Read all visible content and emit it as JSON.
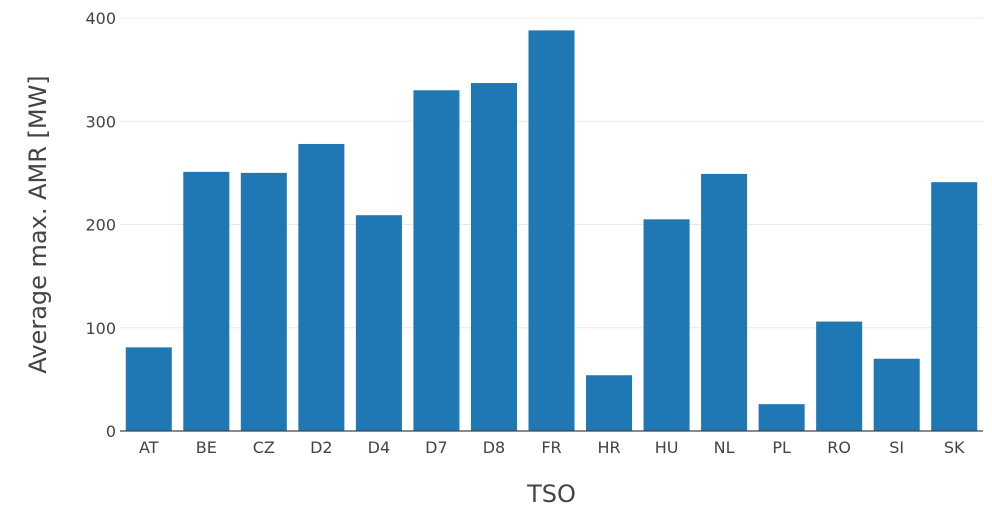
{
  "chart_data": {
    "type": "bar",
    "title": "",
    "xlabel": "TSO",
    "ylabel": "Average max. AMR [MW]",
    "categories": [
      "AT",
      "BE",
      "CZ",
      "D2",
      "D4",
      "D7",
      "D8",
      "FR",
      "HR",
      "HU",
      "NL",
      "PL",
      "RO",
      "SI",
      "SK"
    ],
    "values": [
      81,
      251,
      250,
      278,
      209,
      330,
      337,
      388,
      54,
      205,
      249,
      26,
      106,
      70,
      241
    ],
    "ylim": [
      0,
      400
    ],
    "yticks": [
      0,
      100,
      200,
      300,
      400
    ],
    "grid": true,
    "bar_color": "#1f77b4"
  }
}
